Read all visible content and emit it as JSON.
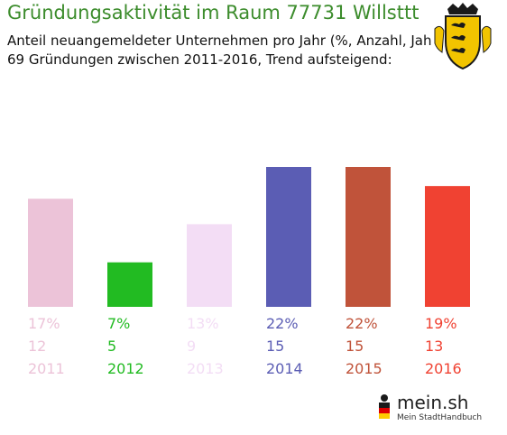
{
  "header": {
    "title": "Gründungsaktivität im Raum 77731 Willsttt",
    "subtitle_line1": "Anteil neuangemeldeter Unternehmen pro Jahr (%, Anzahl, Jahr)",
    "subtitle_line2": "69 Gründungen zwischen 2011-2016, Trend aufsteigend:"
  },
  "crest": {
    "icon": "baden-wuerttemberg-coat-of-arms-icon"
  },
  "brand": {
    "name": "mein.sh",
    "tagline": "Mein StadtHandbuch",
    "icon": "germany-flag-figure-icon"
  },
  "chart_data": {
    "type": "bar",
    "title": "Gründungsaktivität im Raum 77731 Willsttt",
    "categories": [
      "2011",
      "2012",
      "2013",
      "2014",
      "2015",
      "2016"
    ],
    "values": [
      17,
      7,
      13,
      22,
      22,
      19
    ],
    "counts": [
      12,
      5,
      9,
      15,
      15,
      13
    ],
    "percent_labels": [
      "17%",
      "7%",
      "13%",
      "22%",
      "22%",
      "19%"
    ],
    "colors": [
      "#ecc3d8",
      "#22bb22",
      "#f3ddf5",
      "#5b5db4",
      "#c0533a",
      "#f04232"
    ],
    "ylim": [
      0,
      22
    ],
    "grid": false,
    "legend": "none"
  }
}
